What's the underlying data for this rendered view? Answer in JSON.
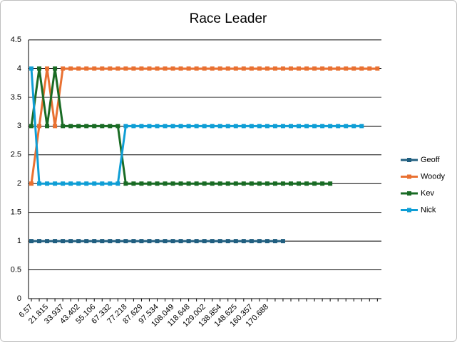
{
  "chart_data": {
    "type": "line",
    "title": "Race Leader",
    "categories": [
      "6.57",
      null,
      "21.815",
      null,
      "33.937",
      null,
      "43.402",
      null,
      "55.106",
      null,
      "67.332",
      null,
      "77.218",
      null,
      "87.629",
      null,
      "97.534",
      null,
      "108.049",
      null,
      "118.648",
      null,
      "129.002",
      null,
      "138.854",
      null,
      "148.625",
      null,
      "160.357",
      null,
      "170.688",
      null,
      null,
      null,
      null,
      null,
      null,
      null,
      null,
      null,
      null,
      null,
      null,
      null,
      null
    ],
    "series": [
      {
        "name": "Geoff",
        "color": "#215f80",
        "values": [
          1,
          1,
          1,
          1,
          1,
          1,
          1,
          1,
          1,
          1,
          1,
          1,
          1,
          1,
          1,
          1,
          1,
          1,
          1,
          1,
          1,
          1,
          1,
          1,
          1,
          1,
          1,
          1,
          1,
          1,
          1,
          1,
          1,
          null,
          null,
          null,
          null,
          null,
          null,
          null,
          null,
          null,
          null,
          null,
          null
        ]
      },
      {
        "name": "Woody",
        "color": "#e97132",
        "values": [
          2,
          3,
          4,
          3,
          4,
          4,
          4,
          4,
          4,
          4,
          4,
          4,
          4,
          4,
          4,
          4,
          4,
          4,
          4,
          4,
          4,
          4,
          4,
          4,
          4,
          4,
          4,
          4,
          4,
          4,
          4,
          4,
          4,
          4,
          4,
          4,
          4,
          4,
          4,
          4,
          4,
          4,
          4,
          4,
          4
        ]
      },
      {
        "name": "Kev",
        "color": "#196b24",
        "values": [
          3,
          4,
          3,
          4,
          3,
          3,
          3,
          3,
          3,
          3,
          3,
          3,
          2,
          2,
          2,
          2,
          2,
          2,
          2,
          2,
          2,
          2,
          2,
          2,
          2,
          2,
          2,
          2,
          2,
          2,
          2,
          2,
          2,
          2,
          2,
          2,
          2,
          2,
          2,
          null,
          null,
          null,
          null,
          null,
          null
        ]
      },
      {
        "name": "Nick",
        "color": "#0f9ed5",
        "values": [
          4,
          2,
          2,
          2,
          2,
          2,
          2,
          2,
          2,
          2,
          2,
          2,
          3,
          3,
          3,
          3,
          3,
          3,
          3,
          3,
          3,
          3,
          3,
          3,
          3,
          3,
          3,
          3,
          3,
          3,
          3,
          3,
          3,
          3,
          3,
          3,
          3,
          3,
          3,
          3,
          3,
          3,
          3,
          null,
          null
        ]
      }
    ],
    "ylim": [
      0,
      4.5
    ],
    "yticks": [
      0,
      0.5,
      1,
      1.5,
      2,
      2.5,
      3,
      3.5,
      4,
      4.5
    ],
    "grid": true,
    "legend": "right"
  }
}
